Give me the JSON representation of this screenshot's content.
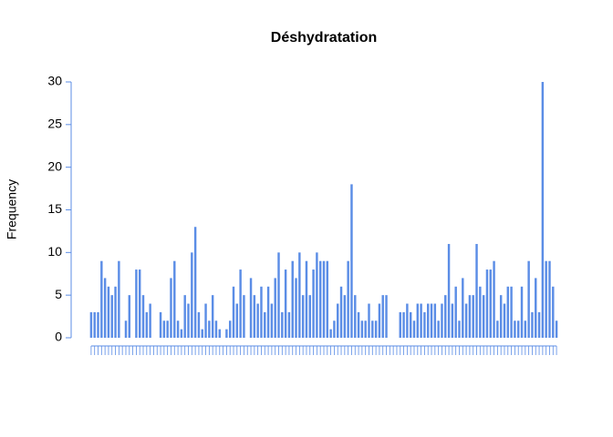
{
  "chart_data": {
    "type": "bar",
    "title": "Déshydratation",
    "y_label": "Frequency",
    "categories": [
      null,
      null,
      null,
      null,
      null,
      null,
      null,
      null,
      null,
      null,
      null,
      null,
      null,
      null,
      null,
      null,
      null,
      null,
      null,
      null,
      null,
      null,
      null,
      null,
      null,
      null,
      null,
      null,
      null,
      null,
      null,
      null,
      null,
      null,
      null,
      null,
      null,
      null,
      null,
      null,
      null,
      null,
      null,
      null,
      null,
      null,
      null,
      null,
      null,
      null,
      null,
      null,
      null,
      null,
      null,
      null,
      null,
      null,
      null,
      null,
      null,
      null,
      null,
      null,
      null,
      null,
      null,
      null,
      null,
      null,
      null,
      null,
      null,
      null,
      null,
      null,
      null,
      null,
      null,
      null,
      null,
      null,
      null,
      null,
      null,
      null,
      null,
      null,
      null,
      null,
      null,
      null,
      null,
      null,
      null,
      null,
      null,
      null,
      null,
      null,
      null,
      null,
      null,
      null,
      null,
      null,
      null,
      null,
      null,
      null,
      null,
      null,
      null,
      null,
      null,
      null,
      null,
      null,
      null,
      null,
      null,
      null,
      null,
      null,
      null,
      null,
      null,
      null,
      null,
      null,
      null,
      null,
      null,
      null,
      null
    ],
    "values": [
      3,
      3,
      3,
      9,
      7,
      6,
      5,
      6,
      9,
      0,
      2,
      5,
      0,
      8,
      8,
      5,
      3,
      4,
      0,
      0,
      3,
      2,
      2,
      7,
      9,
      2,
      1,
      5,
      4,
      10,
      13,
      3,
      1,
      4,
      2,
      5,
      2,
      1,
      0,
      1,
      2,
      6,
      4,
      8,
      5,
      0,
      7,
      5,
      4,
      6,
      3,
      6,
      4,
      7,
      10,
      3,
      8,
      3,
      9,
      7,
      10,
      5,
      9,
      5,
      8,
      10,
      9,
      9,
      9,
      1,
      2,
      4,
      6,
      5,
      9,
      18,
      5,
      3,
      2,
      2,
      4,
      2,
      2,
      4,
      5,
      5,
      0,
      0,
      0,
      3,
      3,
      4,
      3,
      2,
      4,
      4,
      3,
      4,
      4,
      4,
      2,
      4,
      5,
      11,
      4,
      6,
      2,
      7,
      4,
      5,
      5,
      11,
      6,
      5,
      8,
      8,
      9,
      2,
      5,
      4,
      6,
      6,
      2,
      2,
      6,
      2,
      9,
      3,
      7,
      3,
      30,
      9,
      9,
      6,
      2
    ],
    "color": "#5b8de6",
    "ylim": [
      0,
      30
    ],
    "yticks": [
      0,
      5,
      10,
      15,
      20,
      25,
      30
    ],
    "grid": false
  }
}
